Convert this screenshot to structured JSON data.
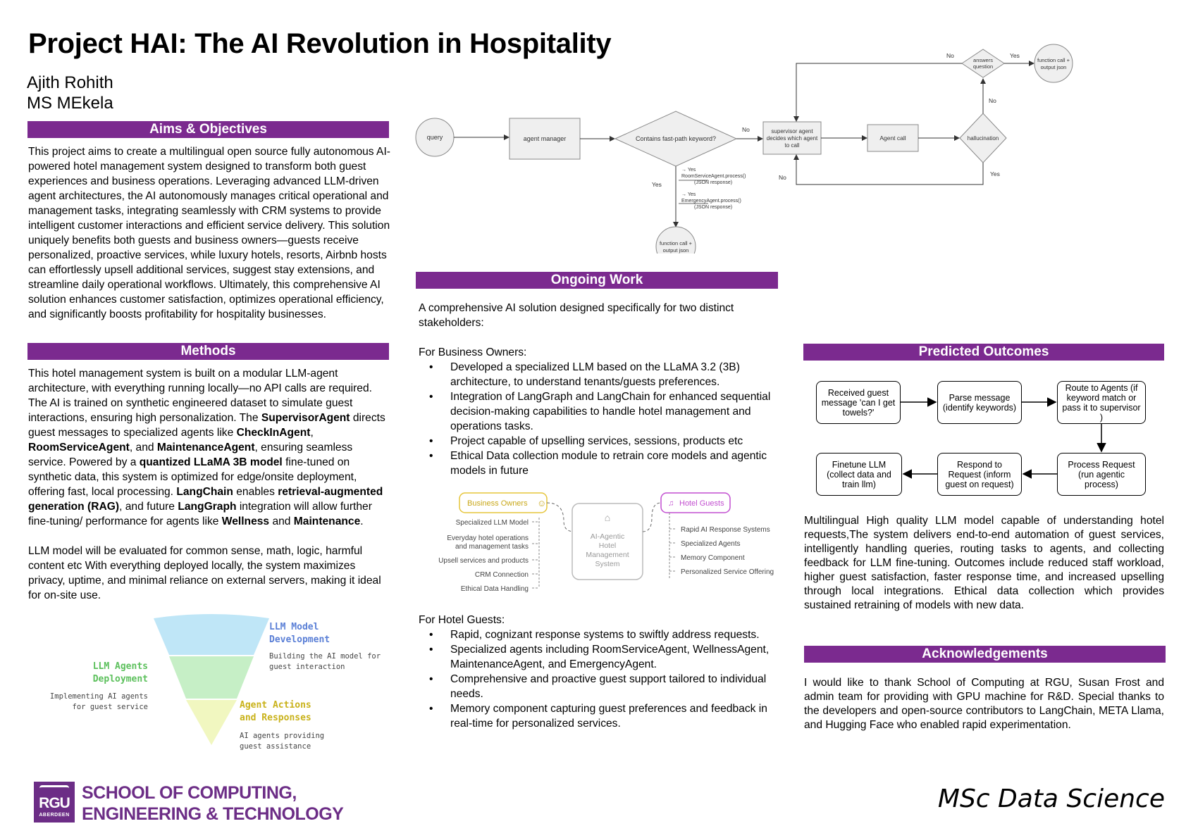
{
  "title": "Project HAI: The AI Revolution in Hospitality",
  "authors": [
    "Ajith Rohith",
    "MS MEkela"
  ],
  "colors": {
    "section_bar": "#7b2a8f",
    "funnel_top": "#bfe6f7",
    "funnel_mid": "#c6efc6",
    "funnel_bottom": "#f1f7c0",
    "owners_yellow": "#e6c53a",
    "guests_purple": "#c24fd0"
  },
  "aims": {
    "heading": "Aims & Objectives",
    "text": "This project aims to create a multilingual  open source fully autonomous AI-powered hotel management system designed to transform both guest experiences and business operations. Leveraging advanced LLM-driven agent architectures, the AI autonomously manages critical operational and management tasks, integrating seamlessly with CRM systems to provide intelligent customer interactions and efficient service delivery. This solution uniquely benefits both guests and business owners—guests receive personalized, proactive services, while luxury hotels, resorts, Airbnb hosts can effortlessly upsell additional services, suggest stay extensions, and streamline daily operational workflows. Ultimately, this comprehensive AI solution enhances customer satisfaction, optimizes operational efficiency, and significantly boosts profitability for hospitality businesses."
  },
  "methods": {
    "heading": "Methods",
    "p1": {
      "t1": "This hotel management system is built on a modular LLM-agent architecture, with everything running locally—no API calls are required. The AI is trained on synthetic engineered dataset to simulate guest interactions, ensuring high personalization. The ",
      "b1": "SupervisorAgent",
      "t2": " directs guest messages to specialized agents like ",
      "b2": "CheckInAgent",
      "t3": ", ",
      "b3": "RoomServiceAgent",
      "t4": ", and ",
      "b4": "MaintenanceAgent",
      "t5": ", ensuring seamless service. Powered by a ",
      "b5": "quantized LLaMA 3B model",
      "t6": " fine-tuned on synthetic data, this system is optimized for edge/onsite deployment, offering fast, local processing. ",
      "b6": "LangChain",
      "t7": " enables ",
      "b7": "retrieval-augmented generation (RAG)",
      "t8": ", and future ",
      "b8": "LangGraph",
      "t9": " integration will allow further fine-tuning/ performance  for agents like ",
      "b9": "Wellness",
      "t10": " and ",
      "b10": "Maintenance",
      "t11": "."
    },
    "p2": "LLM model will be evaluated for common sense, math, logic, harmful content etc With everything deployed locally, the system maximizes privacy, uptime, and minimal reliance on external servers, making it ideal for on-site use."
  },
  "funnel": {
    "top_title": [
      "LLM Model",
      "Development"
    ],
    "top_desc": [
      "Building the AI model for",
      "guest interaction"
    ],
    "left_title": [
      "LLM Agents",
      "Deployment"
    ],
    "left_desc": [
      "Implementing AI agents",
      "for guest service"
    ],
    "right_title": [
      "Agent Actions",
      "and Responses"
    ],
    "right_desc": [
      "AI agents providing",
      "guest assistance"
    ]
  },
  "logo": {
    "badge": "RGU",
    "badge_sub": "ABERDEEN",
    "line1": "SCHOOL OF COMPUTING,",
    "line2": "ENGINEERING & TECHNOLOGY"
  },
  "footer_program": "MSc Data Science",
  "flowchart": {
    "query": "query",
    "agent_manager": "agent manager",
    "decision": "Contains fast-path keyword?",
    "no_label": "No",
    "supervisor": [
      "supervisor agent",
      "decides which agent",
      "to call"
    ],
    "agent_call": "Agent call",
    "hallucination": "hallucination",
    "answers": [
      "answers",
      "question"
    ],
    "final": [
      "function call +",
      "output json"
    ],
    "yes_label": "Yes",
    "fast_path_1": [
      "→ Yes",
      "RoomServiceAgent.process()",
      "(JSON response)"
    ],
    "fast_path_2": [
      "→ Yes",
      "EmergencyAgent.process()",
      "(JSON response)"
    ],
    "fast_output": [
      "function call +",
      "output json"
    ]
  },
  "ongoing": {
    "heading": "Ongoing Work",
    "intro": "A comprehensive AI solution designed specifically for two distinct stakeholders:",
    "owners_heading": "For Business Owners:",
    "owners_items": [
      "Developed a specialized LLM based on the LLaMA 3.2 (3B) architecture, to understand tenants/guests preferences.",
      "Integration of LangGraph and LangChain for enhanced sequential decision-making capabilities to handle hotel management and operations tasks.",
      "Project capable of upselling services, sessions, products etc",
      "Ethical Data collection module to retrain core models and agentic models in future"
    ],
    "guests_heading": "For Hotel Guests:",
    "guests_items": [
      "Rapid, cognizant response systems to swiftly address requests.",
      "Specialized agents including RoomServiceAgent, WellnessAgent, MaintenanceAgent, and EmergencyAgent.",
      "Comprehensive and proactive guest support tailored to individual needs.",
      "Memory component capturing guest preferences and feedback in real-time for personalized services."
    ]
  },
  "stakeholder_diagram": {
    "owners_label": "Business Owners",
    "owners_items": [
      "Specialized LLM Model",
      [
        "Everyday hotel operations",
        "and management tasks"
      ],
      "Upsell services and products",
      "CRM Connection",
      "Ethical Data Handling"
    ],
    "center": [
      "AI-Agentic",
      "Hotel",
      "Management",
      "System"
    ],
    "guests_label": "Hotel Guests",
    "guests_items": [
      "Rapid AI Response Systems",
      "Specialized Agents",
      "Memory Component",
      "Personalized Service Offering"
    ]
  },
  "outcomes": {
    "heading": "Predicted Outcomes",
    "boxes": {
      "received": "Received guest message 'can I get towels?'",
      "parse": "Parse message (identify keywords)",
      "route": "Route to Agents (if keyword match or pass it to supervisor )",
      "finetune": "Finetune LLM (collect data and train llm)",
      "respond": "Respond to Request (inform guest on request)",
      "process": "Process Request (run agentic process)"
    },
    "text": "Multilingual High quality LLM model capable of understanding hotel requests,The system delivers end-to-end automation of guest services, intelligently handling queries, routing tasks to agents, and collecting feedback for LLM fine-tuning. Outcomes include reduced staff workload, higher guest satisfaction, faster response time, and increased upselling through local integrations. Ethical data collection which provides sustained retraining of models with new data."
  },
  "ack": {
    "heading": "Acknowledgements",
    "text": "I would like to thank School of Computing at RGU, Susan Frost and admin team for providing with GPU machine for R&D. Special thanks to the developers and open-source contributors to LangChain, META Llama, and Hugging Face who enabled rapid experimentation."
  }
}
